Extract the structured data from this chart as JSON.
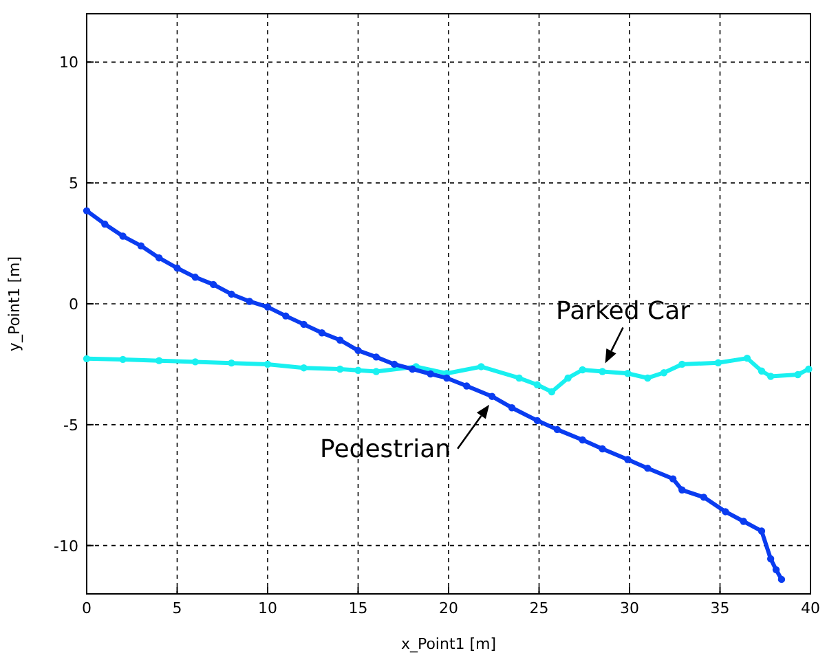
{
  "chart_data": {
    "type": "line",
    "xlabel": "x_Point1 [m]",
    "ylabel": "y_Point1 [m]",
    "xlim": [
      0,
      40
    ],
    "ylim": [
      -12,
      12
    ],
    "xticks": [
      0,
      5,
      10,
      15,
      20,
      25,
      30,
      35,
      40
    ],
    "yticks": [
      -10,
      -5,
      0,
      5,
      10
    ],
    "grid": true,
    "marker": "circle",
    "line_style": "solid",
    "series": [
      {
        "color": "#0a3cf0",
        "x": [
          0,
          1,
          2,
          3,
          4,
          5,
          6,
          7,
          8,
          9,
          10,
          11,
          12,
          13,
          14,
          15,
          16,
          17,
          18,
          19,
          19.9,
          21,
          22.4,
          23.5,
          24.9,
          26,
          27.4,
          28.5,
          29.9,
          31,
          32.4,
          32.9,
          34.1,
          35.3,
          36.3,
          37.3,
          37.8,
          38.1,
          38.4
        ],
        "values": [
          3.85,
          3.3,
          2.8,
          2.4,
          1.9,
          1.48,
          1.1,
          0.8,
          0.4,
          0.1,
          -0.13,
          -0.5,
          -0.85,
          -1.2,
          -1.5,
          -1.93,
          -2.2,
          -2.5,
          -2.7,
          -2.9,
          -3.07,
          -3.4,
          -3.83,
          -4.3,
          -4.83,
          -5.2,
          -5.63,
          -6.0,
          -6.44,
          -6.8,
          -7.24,
          -7.7,
          -8.0,
          -8.6,
          -9.0,
          -9.4,
          -10.55,
          -11.0,
          -11.4
        ]
      },
      {
        "color": "#19f0f0",
        "x": [
          0,
          2,
          4,
          6,
          8,
          10,
          12,
          14,
          15,
          16,
          18.2,
          19.9,
          21.8,
          23.9,
          24.9,
          25.7,
          26.6,
          27.4,
          28.5,
          29.9,
          31,
          31.9,
          32.9,
          34.9,
          36.5,
          37.3,
          37.8,
          39.3,
          39.9
        ],
        "values": [
          -2.27,
          -2.3,
          -2.35,
          -2.4,
          -2.45,
          -2.5,
          -2.65,
          -2.7,
          -2.75,
          -2.8,
          -2.6,
          -2.88,
          -2.6,
          -3.07,
          -3.35,
          -3.64,
          -3.07,
          -2.73,
          -2.8,
          -2.88,
          -3.07,
          -2.85,
          -2.5,
          -2.44,
          -2.25,
          -2.78,
          -3.0,
          -2.93,
          -2.7
        ]
      }
    ],
    "annotations": [
      {
        "text": "Parked Car",
        "x": 28.5,
        "y": -2.8
      },
      {
        "text": "Pedestrian",
        "x": 22.4,
        "y": -3.83
      }
    ]
  }
}
